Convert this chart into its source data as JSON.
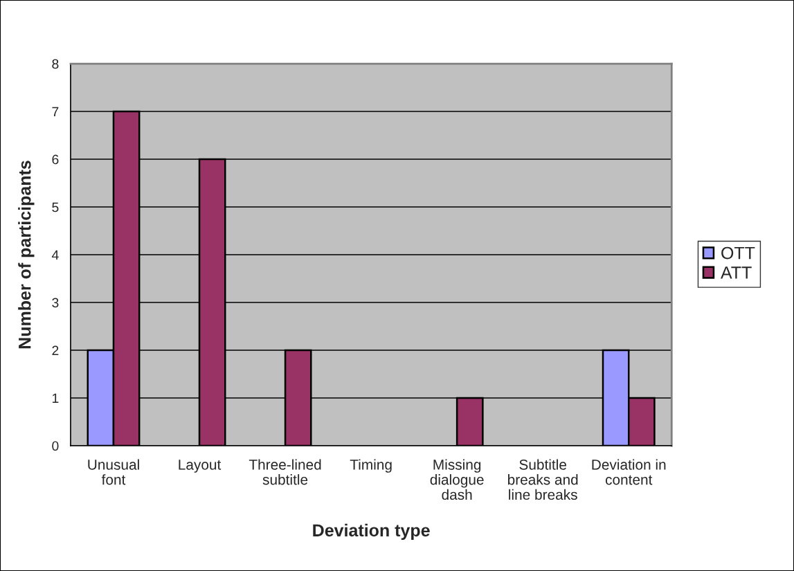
{
  "chart_data": {
    "type": "bar",
    "xlabel": "Deviation type",
    "ylabel": "Number of participants",
    "categories": [
      "Unusual\nfont",
      "Layout",
      "Three-lined\nsubtitle",
      "Timing",
      "Missing\ndialogue\ndash",
      "Subtitle\nbreaks and\nline breaks",
      "Deviation in\ncontent"
    ],
    "series": [
      {
        "name": "OTT",
        "color": "#9999ff",
        "values": [
          2,
          0,
          0,
          0,
          0,
          0,
          2
        ]
      },
      {
        "name": "ATT",
        "color": "#993366",
        "values": [
          7,
          6,
          2,
          0,
          1,
          0,
          1
        ]
      }
    ],
    "ylim": [
      0,
      8
    ],
    "yticks": [
      0,
      1,
      2,
      3,
      4,
      5,
      6,
      7,
      8
    ],
    "grid": "y",
    "legend": "right"
  }
}
